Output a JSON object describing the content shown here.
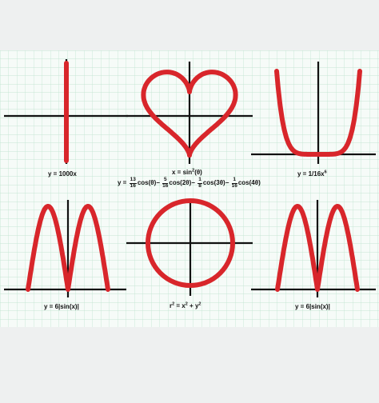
{
  "colors": {
    "background": "#eef0f0",
    "paper": "#f6fbf8",
    "grid": "#c5e6d4",
    "axis": "#111111",
    "curve": "#d8262b"
  },
  "labels": {
    "line": "y = 1000x",
    "heart": "x = sin",
    "heart_sup": "2",
    "heart_suffix": "(θ)",
    "quartic": "y = 1/16x",
    "quartic_sup": "6",
    "sine_left": "y = 6|sin(x)|",
    "circle_r": "r",
    "circle_r_sup": "2",
    "circle_eq": " = x",
    "circle_x_sup": "2",
    "circle_plus": " + y",
    "circle_y_sup": "2",
    "sine_right": "y = 6|sin(x)|"
  },
  "heart_formula": {
    "lead": "y =",
    "terms": [
      {
        "num": "13",
        "den": "16",
        "fn": "cos(θ)",
        "op": "−"
      },
      {
        "num": "5",
        "den": "16",
        "fn": "cos(2θ)",
        "op": "−"
      },
      {
        "num": "1",
        "den": "8",
        "fn": "cos(3θ)",
        "op": "−"
      },
      {
        "num": "1",
        "den": "16",
        "fn": "cos(4θ)",
        "op": ""
      }
    ]
  }
}
